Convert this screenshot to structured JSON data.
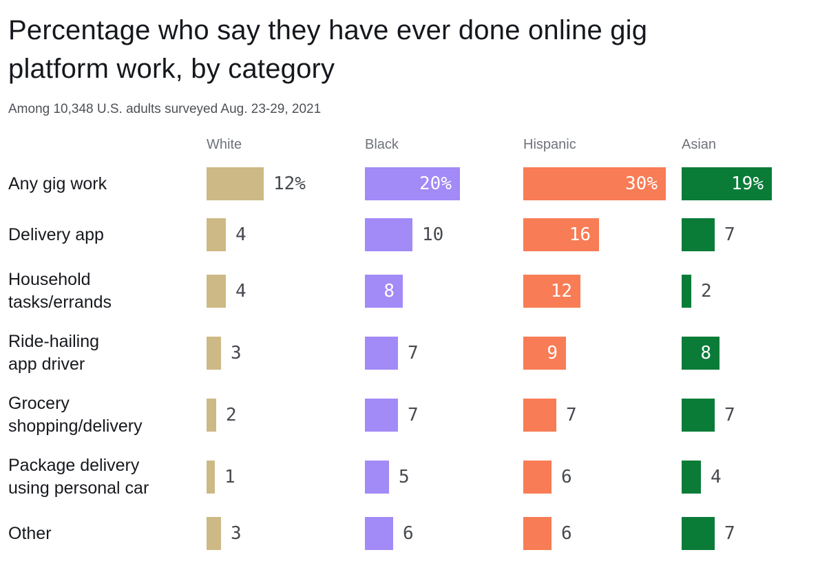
{
  "header": {
    "title": "Percentage who say they have ever done online gig\nplatform work, by category",
    "subtitle": "Among 10,348 U.S. adults surveyed Aug. 23-29, 2021"
  },
  "chart_data": {
    "type": "bar",
    "orientation": "horizontal",
    "title": "Percentage who say they have ever done online gig platform work, by category",
    "subtitle": "Among 10,348 U.S. adults surveyed Aug. 23-29, 2021",
    "x_max": 30,
    "grid": false,
    "legend_position": "column-headers",
    "categories": [
      "Any gig work",
      "Delivery app",
      "Household\ntasks/errands",
      "Ride-hailing\napp driver",
      "Grocery\nshopping/delivery",
      "Package delivery\nusing personal car",
      "Other"
    ],
    "series": [
      {
        "name": "White",
        "color": "#cdb985",
        "values": [
          12,
          4,
          4,
          3,
          2,
          1,
          3
        ],
        "labels": [
          "12%",
          "4",
          "4",
          "3",
          "2",
          "1",
          "3"
        ],
        "label_inside": [
          false,
          false,
          false,
          false,
          false,
          false,
          false
        ]
      },
      {
        "name": "Black",
        "color": "#a28af7",
        "values": [
          20,
          10,
          8,
          7,
          7,
          5,
          6
        ],
        "labels": [
          "20%",
          "10",
          "8",
          "7",
          "7",
          "5",
          "6"
        ],
        "label_inside": [
          true,
          false,
          true,
          false,
          false,
          false,
          false
        ]
      },
      {
        "name": "Hispanic",
        "color": "#f87c55",
        "values": [
          30,
          16,
          12,
          9,
          7,
          6,
          6
        ],
        "labels": [
          "30%",
          "16",
          "12",
          "9",
          "7",
          "6",
          "6"
        ],
        "label_inside": [
          true,
          true,
          true,
          true,
          false,
          false,
          false
        ]
      },
      {
        "name": "Asian",
        "color": "#0a7c38",
        "values": [
          19,
          7,
          2,
          8,
          7,
          4,
          7
        ],
        "labels": [
          "19%",
          "7",
          "2",
          "8",
          "7",
          "4",
          "7"
        ],
        "label_inside": [
          true,
          false,
          false,
          true,
          false,
          false,
          false
        ]
      }
    ]
  }
}
